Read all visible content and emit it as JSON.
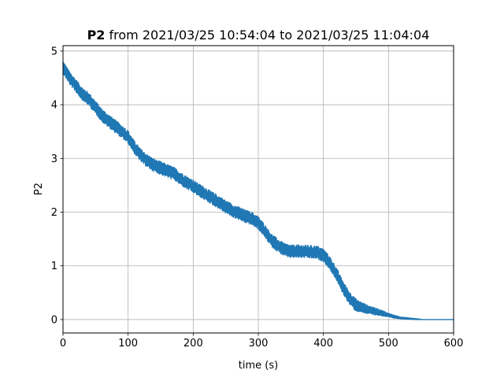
{
  "chart_data": {
    "type": "line",
    "title_bold": "P2",
    "title_rest": " from 2021/03/25 10:54:04 to 2021/03/25 11:04:04",
    "xlabel": "time (s)",
    "ylabel": "P2",
    "xlim": [
      0,
      600
    ],
    "ylim": [
      -0.25,
      5.1
    ],
    "xticks": [
      0,
      100,
      200,
      300,
      400,
      500,
      600
    ],
    "yticks": [
      0,
      1,
      2,
      3,
      4,
      5
    ],
    "grid": true,
    "series": [
      {
        "color": "#1f77b4",
        "band_amplitude": 0.12,
        "points": [
          [
            0,
            4.7
          ],
          [
            10,
            4.5
          ],
          [
            20,
            4.35
          ],
          [
            30,
            4.2
          ],
          [
            40,
            4.1
          ],
          [
            50,
            3.95
          ],
          [
            60,
            3.8
          ],
          [
            70,
            3.7
          ],
          [
            80,
            3.6
          ],
          [
            90,
            3.5
          ],
          [
            100,
            3.4
          ],
          [
            110,
            3.2
          ],
          [
            120,
            3.05
          ],
          [
            130,
            2.95
          ],
          [
            140,
            2.87
          ],
          [
            150,
            2.82
          ],
          [
            160,
            2.77
          ],
          [
            170,
            2.72
          ],
          [
            180,
            2.63
          ],
          [
            190,
            2.55
          ],
          [
            200,
            2.48
          ],
          [
            210,
            2.4
          ],
          [
            220,
            2.33
          ],
          [
            230,
            2.25
          ],
          [
            240,
            2.18
          ],
          [
            250,
            2.1
          ],
          [
            260,
            2.03
          ],
          [
            270,
            1.98
          ],
          [
            280,
            1.92
          ],
          [
            290,
            1.88
          ],
          [
            300,
            1.8
          ],
          [
            310,
            1.65
          ],
          [
            320,
            1.48
          ],
          [
            330,
            1.38
          ],
          [
            340,
            1.3
          ],
          [
            350,
            1.27
          ],
          [
            360,
            1.27
          ],
          [
            370,
            1.27
          ],
          [
            380,
            1.26
          ],
          [
            390,
            1.25
          ],
          [
            400,
            1.2
          ],
          [
            410,
            1.05
          ],
          [
            420,
            0.85
          ],
          [
            430,
            0.6
          ],
          [
            440,
            0.4
          ],
          [
            450,
            0.27
          ],
          [
            460,
            0.22
          ],
          [
            470,
            0.18
          ],
          [
            480,
            0.15
          ],
          [
            490,
            0.12
          ],
          [
            500,
            0.08
          ],
          [
            510,
            0.05
          ],
          [
            520,
            0.03
          ],
          [
            530,
            0.02
          ],
          [
            540,
            0.01
          ],
          [
            550,
            0.0
          ],
          [
            600,
            0.0
          ]
        ]
      }
    ]
  }
}
